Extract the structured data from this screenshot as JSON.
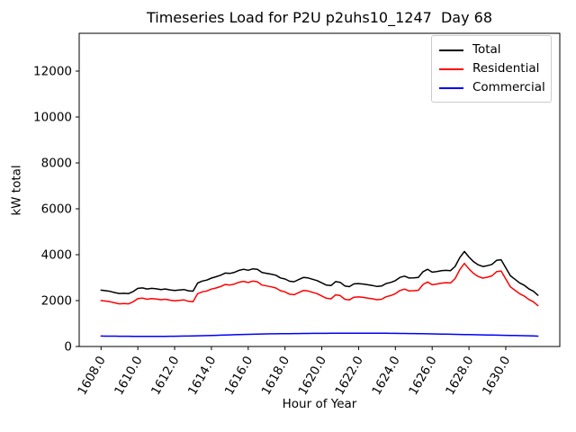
{
  "figure": {
    "title": "Timeseries Load for P2U p2uhs10_1247  Day 68"
  },
  "colors": {
    "background": "#ffffff",
    "axis": "#000000",
    "legend_border": "#cccccc"
  },
  "chart_data": {
    "type": "line",
    "title": "Timeseries Load for P2U p2uhs10_1247  Day 68",
    "xlabel": "Hour of Year",
    "ylabel": "kW total",
    "x_start": 1608.0,
    "x_step": 0.25,
    "x_end": 1631.75,
    "xlim": [
      1606.8125,
      1632.9375
    ],
    "ylim": [
      0,
      13647
    ],
    "grid": false,
    "legend_position": "upper right",
    "x_tick_labels": [
      "1608.0",
      "1610.0",
      "1612.0",
      "1614.0",
      "1616.0",
      "1618.0",
      "1620.0",
      "1622.0",
      "1624.0",
      "1626.0",
      "1628.0",
      "1630.0"
    ],
    "y_tick_labels": [
      "0",
      "2000",
      "4000",
      "6000",
      "8000",
      "10000",
      "12000"
    ],
    "series": [
      {
        "name": "Total",
        "color": "#000000",
        "values": [
          2455,
          2432,
          2400,
          2350,
          2308,
          2318,
          2306,
          2395,
          2535,
          2554,
          2504,
          2533,
          2513,
          2484,
          2505,
          2466,
          2438,
          2460,
          2483,
          2426,
          2410,
          2765,
          2850,
          2896,
          2982,
          3038,
          3104,
          3200,
          3186,
          3232,
          3318,
          3364,
          3320,
          3385,
          3360,
          3225,
          3188,
          3151,
          3104,
          2987,
          2940,
          2842,
          2824,
          2916,
          3008,
          2990,
          2931,
          2872,
          2773,
          2674,
          2655,
          2826,
          2797,
          2638,
          2608,
          2729,
          2740,
          2720,
          2689,
          2658,
          2617,
          2636,
          2745,
          2794,
          2872,
          3010,
          3068,
          2986,
          2993,
          3010,
          3257,
          3364,
          3240,
          3266,
          3302,
          3318,
          3304,
          3490,
          3876,
          4142,
          3898,
          3694,
          3560,
          3486,
          3522,
          3578,
          3754,
          3780,
          3426,
          3082,
          2928,
          2774,
          2670,
          2515,
          2408,
          2230
        ]
      },
      {
        "name": "Residential",
        "color": "#ff0000",
        "values": [
          2000,
          1980,
          1950,
          1900,
          1860,
          1870,
          1860,
          1950,
          2090,
          2110,
          2060,
          2090,
          2070,
          2040,
          2060,
          2020,
          1990,
          2010,
          2030,
          1970,
          1950,
          2300,
          2380,
          2420,
          2500,
          2550,
          2610,
          2700,
          2680,
          2720,
          2800,
          2840,
          2790,
          2850,
          2820,
          2680,
          2640,
          2600,
          2550,
          2430,
          2380,
          2280,
          2260,
          2350,
          2440,
          2420,
          2360,
          2300,
          2200,
          2100,
          2080,
          2250,
          2220,
          2060,
          2030,
          2150,
          2160,
          2140,
          2110,
          2080,
          2040,
          2060,
          2170,
          2220,
          2300,
          2440,
          2500,
          2420,
          2430,
          2450,
          2700,
          2810,
          2690,
          2720,
          2760,
          2780,
          2770,
          2960,
          3350,
          3620,
          3380,
          3180,
          3050,
          2980,
          3020,
          3080,
          3260,
          3290,
          2940,
          2600,
          2450,
          2300,
          2200,
          2050,
          1950,
          1780
        ]
      },
      {
        "name": "Commercial",
        "color": "#0000ff",
        "values": [
          455,
          452,
          450,
          450,
          448,
          448,
          446,
          445,
          445,
          444,
          444,
          443,
          443,
          444,
          445,
          446,
          448,
          450,
          453,
          456,
          460,
          465,
          470,
          476,
          482,
          488,
          494,
          500,
          506,
          512,
          518,
          524,
          530,
          535,
          540,
          545,
          548,
          551,
          554,
          557,
          560,
          562,
          564,
          566,
          568,
          570,
          571,
          572,
          573,
          574,
          575,
          576,
          577,
          578,
          578,
          579,
          580,
          580,
          579,
          578,
          577,
          576,
          575,
          574,
          572,
          570,
          568,
          566,
          563,
          560,
          557,
          554,
          550,
          546,
          542,
          538,
          534,
          530,
          526,
          522,
          518,
          514,
          510,
          506,
          502,
          498,
          494,
          490,
          486,
          482,
          478,
          474,
          470,
          465,
          458,
          450
        ]
      }
    ]
  }
}
